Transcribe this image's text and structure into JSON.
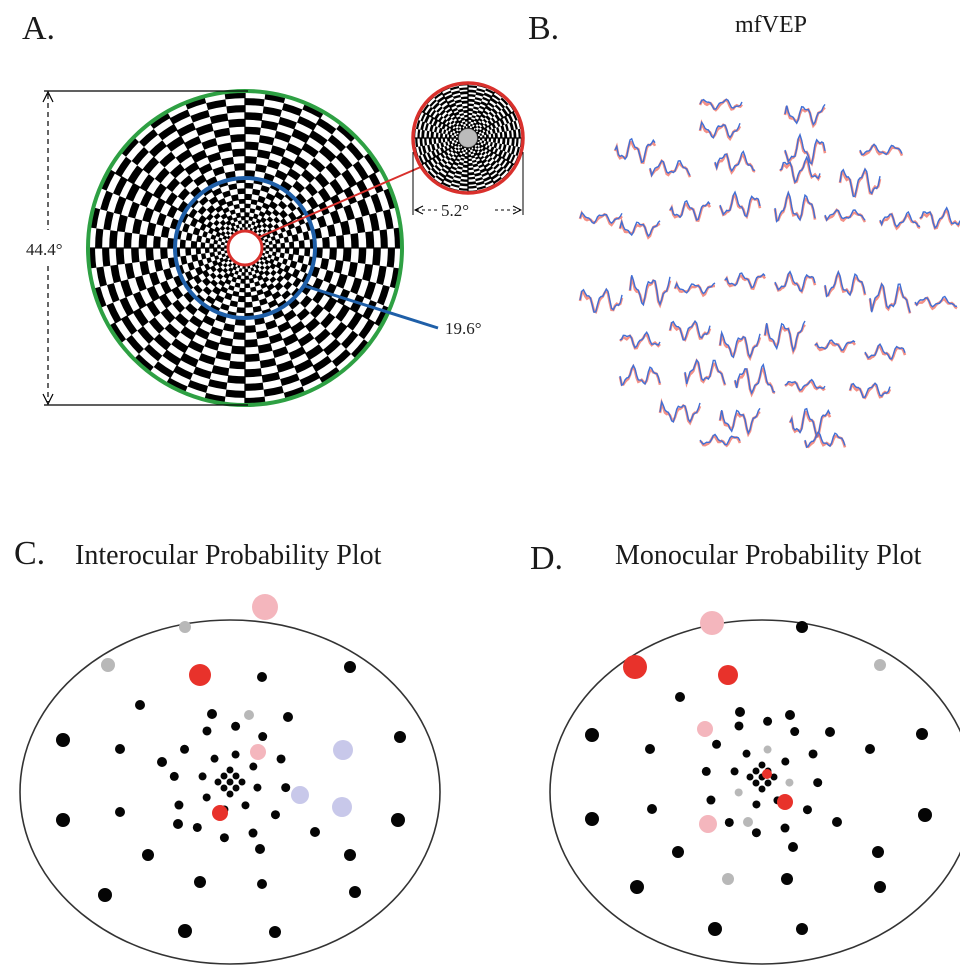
{
  "panels": {
    "a": {
      "letter": "A.",
      "outer_extent": "44.4°",
      "middle_extent": "19.6°",
      "inner_extent": "5.2°"
    },
    "b": {
      "letter": "B.",
      "title": "mfVEP"
    },
    "c": {
      "letter": "C.",
      "title": "Interocular Probability Plot"
    },
    "d": {
      "letter": "D.",
      "title": "Monocular Probability Plot"
    }
  },
  "colors": {
    "outer_ring": "#2ea043",
    "middle_ring": "#1f5fa8",
    "inner_ring": "#d9302c",
    "trace_blue": "#3f6fd6",
    "trace_red": "#ef6b5e",
    "point_black": "#050505",
    "point_red": "#e8322b",
    "point_pink": "#f4b6bd",
    "point_gray": "#b8b8b8",
    "point_lavender": "#c8c8ea"
  },
  "legend_note": ""
}
